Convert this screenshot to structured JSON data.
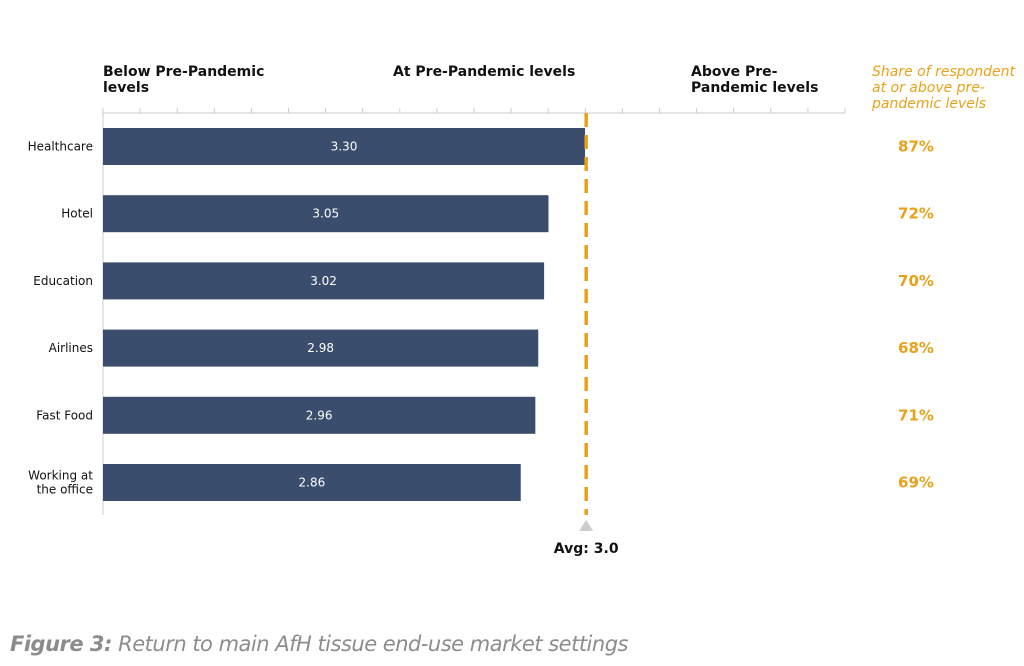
{
  "chart_data": {
    "type": "bar",
    "orientation": "horizontal",
    "categories": [
      "Healthcare",
      "Hotel",
      "Education",
      "Airlines",
      "Fast Food",
      "Working at the office"
    ],
    "category_lines": [
      [
        "Healthcare"
      ],
      [
        "Hotel"
      ],
      [
        "Education"
      ],
      [
        "Airlines"
      ],
      [
        "Fast Food"
      ],
      [
        "Working at",
        "the office"
      ]
    ],
    "values": [
      3.3,
      3.05,
      3.02,
      2.98,
      2.96,
      2.86
    ],
    "value_labels": [
      "3.30",
      "3.05",
      "3.02",
      "2.98",
      "2.96",
      "2.86"
    ],
    "share": [
      "87%",
      "72%",
      "70%",
      "68%",
      "71%",
      "69%"
    ],
    "average": 3.0,
    "average_label": "Avg: 3.0",
    "scale_headers": {
      "below": "Below Pre-Pandemic levels",
      "at": "At Pre-Pandemic levels",
      "above": "Above Pre-Pandemic levels"
    },
    "share_header_lines": [
      "Share of respondent",
      "at or above pre-",
      "pandemic levels"
    ],
    "legend": "none",
    "grid": false,
    "colors": {
      "bar": "#3A4D6D",
      "accent": "#E8A21A",
      "bar_label": "#ffffff",
      "axis": "#cccccc"
    }
  },
  "caption": {
    "prefix": "Figure 3:",
    "text": "Return to main AfH tissue end-use market settings"
  }
}
